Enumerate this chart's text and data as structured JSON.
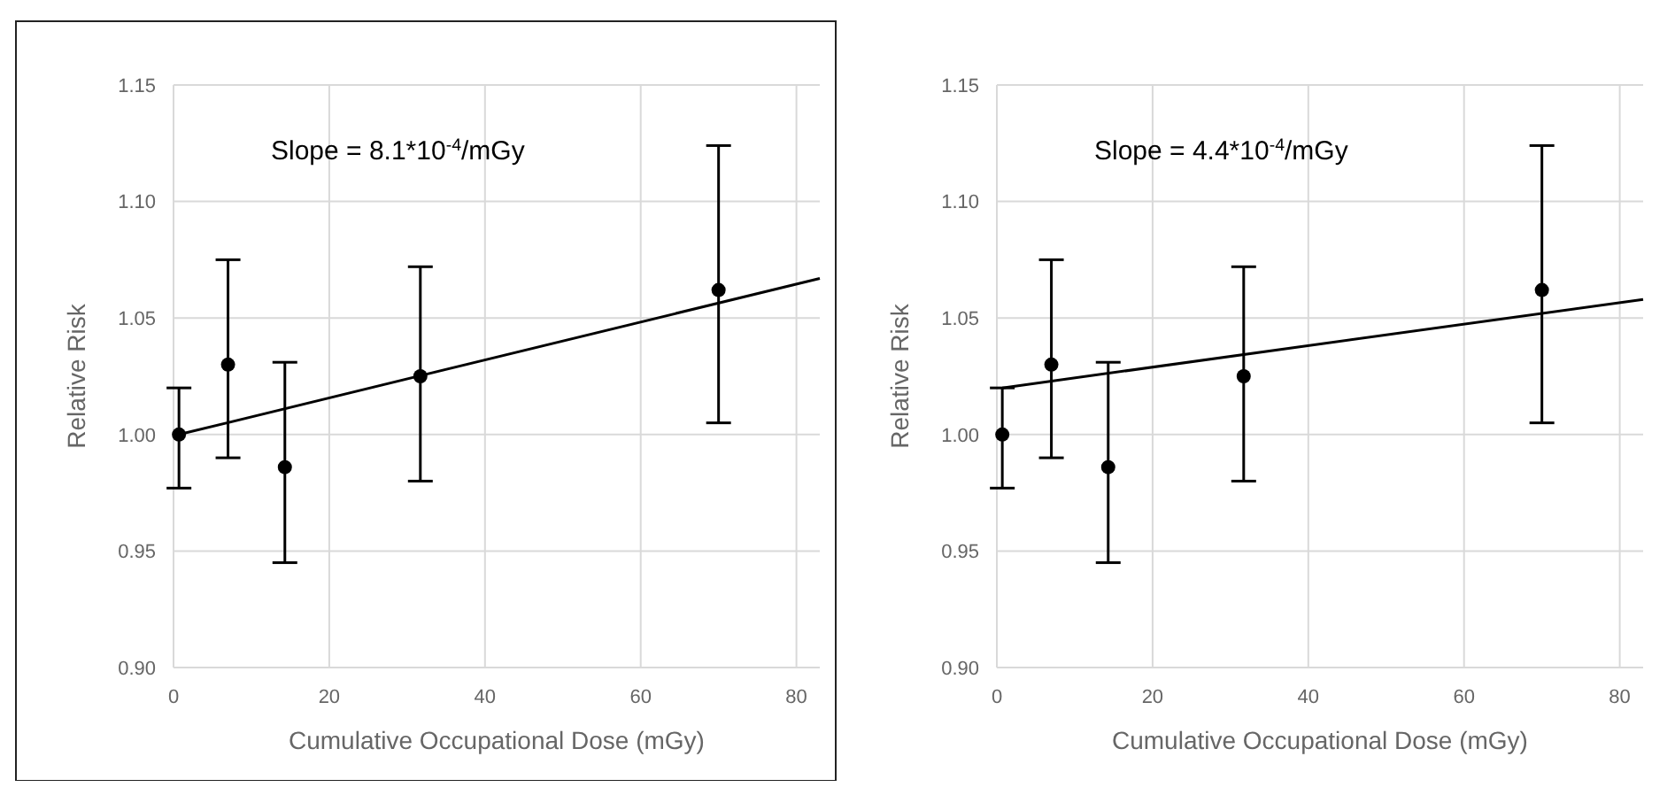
{
  "chart_data": [
    {
      "type": "scatter",
      "xlabel": "Cumulative Occupational Dose (mGy)",
      "ylabel": "Relative Risk",
      "xlim": [
        0,
        83
      ],
      "ylim": [
        0.9,
        1.15
      ],
      "xticks": [
        0,
        20,
        40,
        60,
        80
      ],
      "yticks": [
        {
          "value": 0.9,
          "label": "0.90"
        },
        {
          "value": 0.95,
          "label": "0.95"
        },
        {
          "value": 1.0,
          "label": "1.00"
        },
        {
          "value": 1.05,
          "label": "1.05"
        },
        {
          "value": 1.1,
          "label": "1.10"
        },
        {
          "value": 1.15,
          "label": "1.15"
        }
      ],
      "grid": true,
      "annotations": [
        "Slope = 8.1*10$^{-4}$/mGy"
      ],
      "series": [
        {
          "color": "#000000",
          "marker": "circle",
          "x": [
            0.7,
            7,
            14.3,
            31.7,
            70
          ],
          "values": [
            1.0,
            1.03,
            0.986,
            1.025,
            1.062
          ],
          "errors": [
            [
              0.977,
              1.02
            ],
            [
              0.99,
              1.075
            ],
            [
              0.945,
              1.031
            ],
            [
              0.98,
              1.072
            ],
            [
              1.005,
              1.124
            ]
          ]
        },
        {
          "type": "line",
          "color": "#000000",
          "x": [
            0.7,
            83
          ],
          "values": [
            1.0,
            1.067
          ]
        }
      ]
    },
    {
      "type": "scatter",
      "xlabel": "Cumulative Occupational Dose (mGy)",
      "ylabel": "Relative Risk",
      "xlim": [
        0,
        83
      ],
      "ylim": [
        0.9,
        1.15
      ],
      "xticks": [
        0,
        20,
        40,
        60,
        80
      ],
      "yticks": [
        {
          "value": 0.9,
          "label": "0.90"
        },
        {
          "value": 0.95,
          "label": "0.95"
        },
        {
          "value": 1.0,
          "label": "1.00"
        },
        {
          "value": 1.05,
          "label": "1.05"
        },
        {
          "value": 1.1,
          "label": "1.10"
        },
        {
          "value": 1.15,
          "label": "1.15"
        }
      ],
      "grid": true,
      "annotations": [
        "Slope = 4.4*10$^{-4}$/mGy"
      ],
      "series": [
        {
          "color": "#000000",
          "marker": "circle",
          "x": [
            0.7,
            7,
            14.3,
            31.7,
            70
          ],
          "values": [
            1.0,
            1.03,
            0.986,
            1.025,
            1.062
          ],
          "errors": [
            [
              0.977,
              1.02
            ],
            [
              0.99,
              1.075
            ],
            [
              0.945,
              1.031
            ],
            [
              0.98,
              1.072
            ],
            [
              1.005,
              1.124
            ]
          ]
        },
        {
          "type": "line",
          "color": "#000000",
          "x": [
            0.7,
            83
          ],
          "values": [
            1.02,
            1.058
          ]
        }
      ]
    }
  ]
}
